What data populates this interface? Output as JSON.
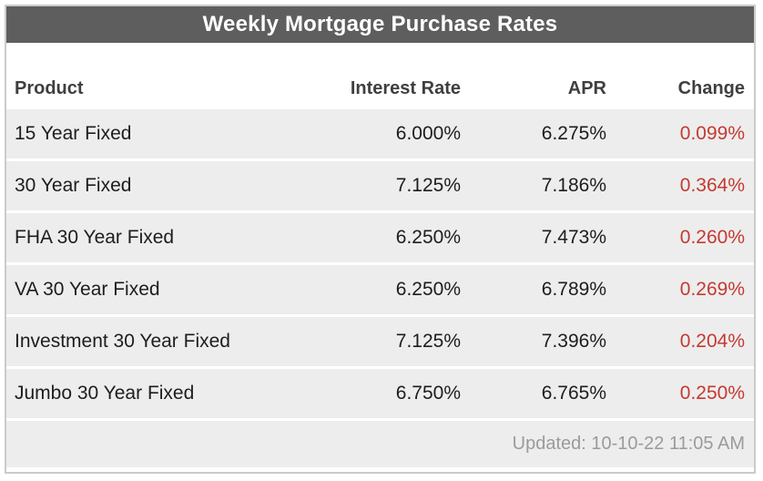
{
  "title": "Weekly Mortgage Purchase Rates",
  "columns": {
    "product": "Product",
    "interest_rate": "Interest Rate",
    "apr": "APR",
    "change": "Change"
  },
  "rows": [
    {
      "product": "15 Year Fixed",
      "interest_rate": "6.000%",
      "apr": "6.275%",
      "change": "0.099%"
    },
    {
      "product": "30 Year Fixed",
      "interest_rate": "7.125%",
      "apr": "7.186%",
      "change": "0.364%"
    },
    {
      "product": "FHA 30 Year Fixed",
      "interest_rate": "6.250%",
      "apr": "7.473%",
      "change": "0.260%"
    },
    {
      "product": "VA 30 Year Fixed",
      "interest_rate": "6.250%",
      "apr": "6.789%",
      "change": "0.269%"
    },
    {
      "product": "Investment 30 Year Fixed",
      "interest_rate": "7.125%",
      "apr": "7.396%",
      "change": "0.204%"
    },
    {
      "product": "Jumbo 30 Year Fixed",
      "interest_rate": "6.750%",
      "apr": "6.765%",
      "change": "0.250%"
    }
  ],
  "footer": {
    "updated": "Updated: 10-10-22 11:05 AM"
  },
  "colors": {
    "title_bar_bg": "#5e5e5e",
    "title_text": "#ffffff",
    "header_text": "#3f3f3f",
    "row_bg": "#ededed",
    "row_text": "#1d1d1d",
    "change_text": "#c43a31",
    "footer_text": "#9b9b9b",
    "border": "#cbcbcb"
  },
  "chart_data": {
    "type": "table",
    "title": "Weekly Mortgage Purchase Rates",
    "columns": [
      "Product",
      "Interest Rate",
      "APR",
      "Change"
    ],
    "rows": [
      [
        "15 Year Fixed",
        "6.000%",
        "6.275%",
        "0.099%"
      ],
      [
        "30 Year Fixed",
        "7.125%",
        "7.186%",
        "0.364%"
      ],
      [
        "FHA 30 Year Fixed",
        "6.250%",
        "7.473%",
        "0.260%"
      ],
      [
        "VA 30 Year Fixed",
        "6.250%",
        "6.789%",
        "0.269%"
      ],
      [
        "Investment 30 Year Fixed",
        "7.125%",
        "7.396%",
        "0.204%"
      ],
      [
        "Jumbo 30 Year Fixed",
        "6.750%",
        "6.765%",
        "0.250%"
      ]
    ],
    "annotations": [
      "Updated: 10-10-22 11:05 AM"
    ],
    "layout_hints": {
      "numeric_columns_alignment": "right",
      "change_column_color": "#c43a31",
      "row_striping": "uniform-gray-with-white-gaps"
    }
  }
}
